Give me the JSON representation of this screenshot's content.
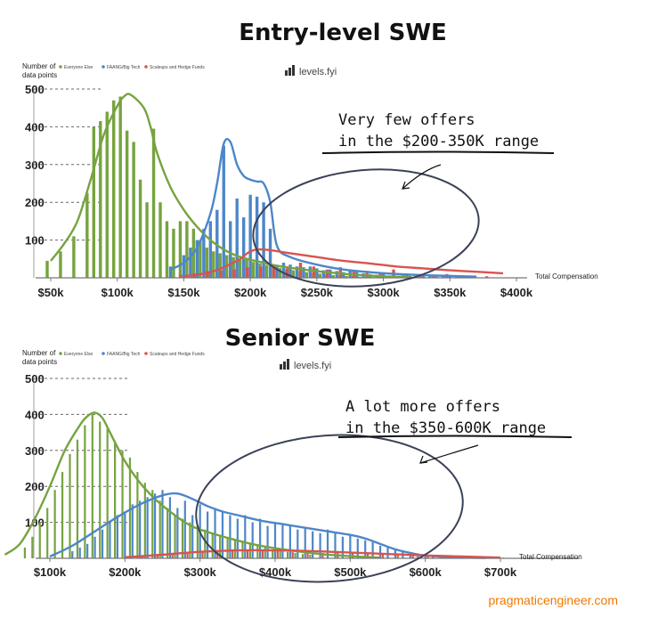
{
  "colors": {
    "green": "#76a33f",
    "blue": "#4d86c9",
    "red": "#d9534f",
    "grid": "#555555",
    "credit": "#f07800"
  },
  "credit": "pragmaticengineer.com",
  "chart_data": [
    {
      "type": "bar",
      "title": "Entry-level SWE",
      "ylabel": "Number of data points",
      "xlabel": "Total Compensation",
      "brand": "levels.fyi",
      "legend": [
        "Everyone Else",
        "FAANG/Big Tech",
        "Scaleups and Hedge Funds"
      ],
      "xlim": [
        50,
        400
      ],
      "ylim": [
        0,
        500
      ],
      "x_ticks": [
        50,
        100,
        150,
        200,
        250,
        300,
        350,
        400
      ],
      "x_tick_labels": [
        "$50k",
        "$100k",
        "$150k",
        "$200k",
        "$250k",
        "$300k",
        "$350k",
        "$400k"
      ],
      "y_ticks": [
        100,
        200,
        300,
        400,
        500
      ],
      "y_tick_labels": [
        "100",
        "200",
        "300",
        "400",
        "500"
      ],
      "annotation": [
        "Very few offers",
        "in the $200-350K range"
      ],
      "series": [
        {
          "name": "Everyone Else",
          "x": [
            50,
            60,
            70,
            80,
            85,
            90,
            95,
            100,
            105,
            110,
            115,
            120,
            125,
            130,
            135,
            140,
            145,
            150,
            155,
            160,
            165,
            170,
            175,
            180,
            185,
            190,
            195,
            200,
            205,
            210,
            215,
            220,
            225,
            230,
            235,
            240,
            245,
            250,
            255,
            260,
            265,
            270,
            275,
            280,
            285,
            290,
            295,
            300
          ],
          "values": [
            45,
            70,
            110,
            225,
            400,
            415,
            440,
            470,
            480,
            390,
            360,
            260,
            200,
            395,
            200,
            150,
            130,
            150,
            150,
            130,
            100,
            80,
            70,
            65,
            60,
            55,
            50,
            48,
            42,
            38,
            34,
            30,
            26,
            22,
            20,
            18,
            15,
            13,
            11,
            9,
            7,
            6,
            5,
            4,
            3,
            3,
            2,
            2
          ]
        },
        {
          "name": "FAANG/Big Tech",
          "x": [
            140,
            150,
            155,
            160,
            165,
            170,
            175,
            180,
            185,
            190,
            195,
            200,
            205,
            210,
            215,
            220,
            225,
            230,
            235,
            240,
            245,
            250,
            255,
            260,
            265,
            270,
            275,
            280,
            285,
            290,
            295,
            300,
            305,
            310,
            315,
            320,
            325,
            330,
            335,
            340,
            345,
            350,
            355,
            360
          ],
          "values": [
            30,
            60,
            80,
            100,
            130,
            150,
            180,
            350,
            150,
            210,
            160,
            220,
            215,
            200,
            130,
            30,
            40,
            35,
            30,
            28,
            30,
            25,
            20,
            22,
            18,
            15,
            20,
            15,
            12,
            10,
            8,
            10,
            6,
            5,
            6,
            5,
            4,
            5,
            4,
            3,
            4,
            3,
            3,
            2
          ]
        },
        {
          "name": "Scaleups and Hedge Funds",
          "x": [
            145,
            155,
            165,
            175,
            185,
            195,
            205,
            215,
            225,
            235,
            245,
            255,
            265,
            275,
            285,
            295,
            305,
            315,
            325,
            335,
            345,
            355,
            365,
            375
          ],
          "values": [
            8,
            12,
            18,
            20,
            22,
            28,
            30,
            35,
            25,
            40,
            30,
            22,
            28,
            20,
            18,
            15,
            22,
            12,
            10,
            8,
            10,
            6,
            5,
            4
          ]
        }
      ],
      "curves": [
        {
          "name": "Everyone Else",
          "x": [
            50,
            60,
            70,
            80,
            90,
            100,
            105,
            110,
            120,
            125,
            130,
            140,
            150,
            160,
            170,
            180,
            190,
            200,
            210,
            220,
            240,
            260,
            280,
            300,
            320
          ],
          "y": [
            45,
            90,
            150,
            260,
            380,
            455,
            480,
            485,
            450,
            400,
            330,
            240,
            180,
            135,
            100,
            75,
            58,
            48,
            40,
            32,
            22,
            14,
            8,
            4,
            2
          ]
        },
        {
          "name": "FAANG/Big Tech",
          "x": [
            140,
            150,
            160,
            170,
            175,
            180,
            185,
            190,
            195,
            200,
            205,
            210,
            215,
            220,
            230,
            250,
            270,
            290,
            310,
            330,
            350,
            370
          ],
          "y": [
            22,
            40,
            80,
            170,
            250,
            355,
            360,
            300,
            270,
            260,
            255,
            250,
            200,
            85,
            55,
            35,
            22,
            15,
            10,
            7,
            5,
            3
          ]
        },
        {
          "name": "Scaleups and Hedge Funds",
          "x": [
            150,
            170,
            190,
            200,
            210,
            230,
            250,
            270,
            290,
            310,
            330,
            350,
            370,
            390
          ],
          "y": [
            4,
            15,
            45,
            70,
            75,
            65,
            55,
            45,
            38,
            30,
            25,
            20,
            16,
            12
          ]
        }
      ]
    },
    {
      "type": "bar",
      "title": "Senior SWE",
      "ylabel": "Number of data points",
      "xlabel": "Total Compensation",
      "brand": "levels.fyi",
      "legend": [
        "Everyone Else",
        "FAANG/Big Tech",
        "Scaleups and Hedge Funds"
      ],
      "xlim": [
        40,
        720
      ],
      "ylim": [
        0,
        500
      ],
      "x_ticks": [
        100,
        200,
        300,
        400,
        500,
        600,
        700
      ],
      "x_tick_labels": [
        "$100k",
        "$200k",
        "$300k",
        "$400k",
        "$500k",
        "$600k",
        "$700k"
      ],
      "y_ticks": [
        100,
        200,
        300,
        400,
        500
      ],
      "y_tick_labels": [
        "100",
        "200",
        "300",
        "400",
        "500"
      ],
      "annotation": [
        "A lot more offers",
        "in the $350-600K range"
      ],
      "series": [
        {
          "name": "Everyone Else",
          "x": [
            70,
            80,
            90,
            100,
            110,
            120,
            130,
            140,
            150,
            160,
            170,
            180,
            190,
            200,
            210,
            220,
            230,
            240,
            250,
            260,
            270,
            280,
            290,
            300,
            310,
            320,
            330,
            340,
            350,
            360,
            370,
            380,
            390,
            400,
            410,
            420,
            430,
            440,
            450
          ],
          "values": [
            30,
            60,
            100,
            140,
            190,
            240,
            290,
            330,
            370,
            400,
            380,
            360,
            320,
            300,
            280,
            240,
            210,
            190,
            160,
            140,
            120,
            110,
            100,
            90,
            80,
            70,
            65,
            55,
            50,
            45,
            40,
            35,
            30,
            25,
            20,
            18,
            15,
            12,
            10
          ]
        },
        {
          "name": "FAANG/Big Tech",
          "x": [
            130,
            140,
            150,
            160,
            170,
            180,
            190,
            200,
            210,
            220,
            230,
            240,
            250,
            260,
            270,
            280,
            290,
            300,
            310,
            320,
            330,
            340,
            350,
            360,
            370,
            380,
            390,
            400,
            410,
            420,
            430,
            440,
            450,
            460,
            470,
            480,
            490,
            500,
            510,
            520,
            530,
            540,
            550,
            560,
            570,
            580,
            590,
            600,
            610,
            620
          ],
          "values": [
            20,
            30,
            40,
            60,
            80,
            100,
            120,
            130,
            150,
            160,
            170,
            180,
            190,
            170,
            140,
            160,
            120,
            150,
            130,
            140,
            130,
            120,
            110,
            120,
            100,
            110,
            90,
            100,
            95,
            90,
            80,
            85,
            75,
            70,
            80,
            70,
            60,
            65,
            55,
            50,
            45,
            35,
            30,
            25,
            20,
            15,
            12,
            10,
            8,
            6
          ]
        },
        {
          "name": "Scaleups and Hedge Funds",
          "x": [
            200,
            220,
            240,
            260,
            280,
            300,
            320,
            340,
            360,
            380,
            400,
            420,
            440,
            460,
            480,
            500,
            520,
            540,
            560,
            580,
            600,
            620,
            640,
            660,
            680,
            700
          ],
          "values": [
            5,
            8,
            12,
            15,
            18,
            20,
            22,
            25,
            22,
            20,
            22,
            18,
            20,
            15,
            18,
            14,
            12,
            10,
            10,
            8,
            8,
            6,
            5,
            4,
            3,
            2
          ]
        }
      ],
      "curves": [
        {
          "name": "Everyone Else",
          "x": [
            40,
            60,
            80,
            100,
            120,
            140,
            150,
            160,
            170,
            180,
            200,
            220,
            240,
            260,
            280,
            300,
            340,
            380,
            420,
            460,
            500,
            540
          ],
          "y": [
            10,
            40,
            110,
            200,
            300,
            370,
            395,
            405,
            390,
            350,
            270,
            210,
            165,
            130,
            100,
            80,
            55,
            35,
            22,
            12,
            6,
            2
          ]
        },
        {
          "name": "FAANG/Big Tech",
          "x": [
            100,
            130,
            160,
            190,
            220,
            250,
            270,
            290,
            310,
            330,
            350,
            380,
            410,
            440,
            470,
            500,
            520,
            540,
            560,
            580,
            600,
            640,
            680
          ],
          "y": [
            5,
            35,
            75,
            115,
            150,
            175,
            180,
            165,
            145,
            130,
            120,
            105,
            95,
            85,
            75,
            65,
            55,
            40,
            25,
            15,
            8,
            3,
            1
          ]
        },
        {
          "name": "Scaleups and Hedge Funds",
          "x": [
            200,
            250,
            300,
            350,
            400,
            450,
            500,
            550,
            600,
            650,
            700
          ],
          "y": [
            3,
            10,
            18,
            22,
            22,
            20,
            16,
            12,
            8,
            5,
            2
          ]
        }
      ]
    }
  ]
}
